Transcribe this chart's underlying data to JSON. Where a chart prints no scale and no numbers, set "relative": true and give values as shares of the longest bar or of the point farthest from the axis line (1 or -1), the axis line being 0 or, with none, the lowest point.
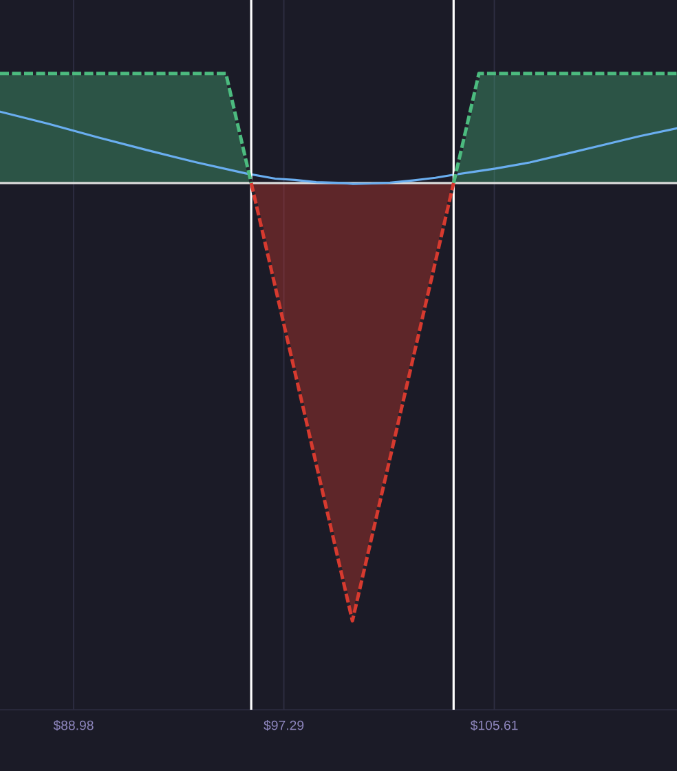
{
  "chart_data": {
    "type": "area",
    "relative": true,
    "xlim": [
      86.07,
      112.83
    ],
    "xticks": [
      {
        "value": 88.98,
        "label": "$88.98"
      },
      {
        "value": 97.29,
        "label": "$97.29"
      },
      {
        "value": 105.61,
        "label": "$105.61"
      }
    ],
    "series": [
      {
        "color": "#4cbb7f",
        "line_style": "dashed",
        "x": [
          86.07,
          95,
          96,
          100,
          104,
          105,
          112.83
        ],
        "values": [
          0.25,
          0.25,
          0,
          null,
          0,
          0.25,
          0.25
        ]
      },
      {
        "color": "#d63a2f",
        "line_style": "dashed",
        "x": [
          96,
          100,
          104
        ],
        "values": [
          0,
          -1,
          0
        ]
      },
      {
        "type": "line",
        "color": "#6aaef0",
        "line_style": "solid",
        "x": [
          86.07,
          88.0,
          89.96,
          91.89,
          93.85,
          95.78,
          96.95,
          97.73,
          98.57,
          99.66,
          100.02,
          100.75,
          101.49,
          102.39,
          103.28,
          104.02,
          104.83,
          105.65,
          107.01,
          108.26,
          109.92,
          111.36,
          112.83
        ],
        "values": [
          0.163,
          0.135,
          0.104,
          0.075,
          0.047,
          0.022,
          0.01,
          0.007,
          0.002,
          0.0,
          -0.002,
          -0.001,
          0.001,
          0.006,
          0.012,
          0.019,
          0.026,
          0.033,
          0.047,
          0.064,
          0.087,
          0.107,
          0.125
        ]
      }
    ],
    "ref_lines": [
      {
        "axis": "y",
        "value": 0,
        "color": "#d9d9d9"
      },
      {
        "axis": "x",
        "value": 96,
        "color": "#ffffff"
      },
      {
        "axis": "x",
        "value": 104,
        "color": "#ffffff"
      }
    ],
    "grid": "x"
  }
}
